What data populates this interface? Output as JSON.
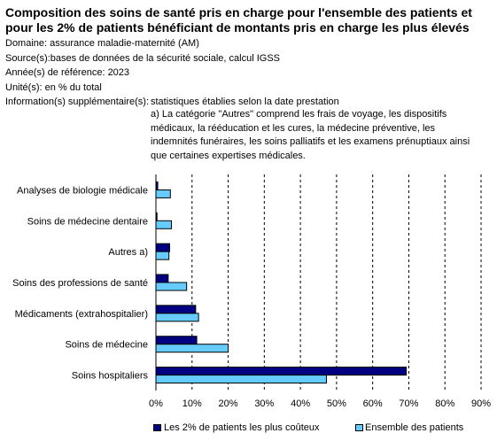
{
  "header": {
    "title": "Composition des soins de santé pris en charge pour l'ensemble des patients et pour les 2% de patients bénéficiant de montants pris en charge les plus élevés",
    "domaine": "Domaine: assurance maladie-maternité (AM)",
    "sources": "Source(s):bases de données de la sécurité sociale, calcul IGSS",
    "annee": "Année(s) de référence: 2023",
    "unite": "Unité(s): en % du total",
    "info_label": "Information(s) supplémentaire(s):",
    "info_text": "statistiques établies selon la date prestation",
    "note": "a) La catégorie \"Autres\" comprend les frais de voyage, les dispositifs médicaux, la rééducation et les cures, la médecine préventive, les indemnités funéraires, les soins palliatifs et les examens prénuptiaux ainsi que certaines expertises médicales."
  },
  "chart_data": {
    "type": "bar",
    "orientation": "horizontal",
    "categories": [
      "Analyses de biologie médicale",
      "Soins de médecine dentaire",
      "Autres a)",
      "Soins des professions de santé",
      "Médicaments (extrahospitalier)",
      "Soins de médecine",
      "Soins hospitaliers"
    ],
    "series": [
      {
        "name": "Les 2% de patients les plus coûteux",
        "color": "#000080",
        "values": [
          0.5,
          0.3,
          3.8,
          3.4,
          11.0,
          11.3,
          69.3
        ]
      },
      {
        "name": "Ensemble des patients",
        "color": "#66ccff",
        "values": [
          4.0,
          4.3,
          3.6,
          8.5,
          11.8,
          20.0,
          47.2
        ]
      }
    ],
    "x_ticks": [
      "0%",
      "10%",
      "20%",
      "30%",
      "40%",
      "50%",
      "60%",
      "70%",
      "80%",
      "90%"
    ],
    "xlim": [
      0,
      90
    ],
    "grid": true,
    "legend_position": "bottom"
  }
}
